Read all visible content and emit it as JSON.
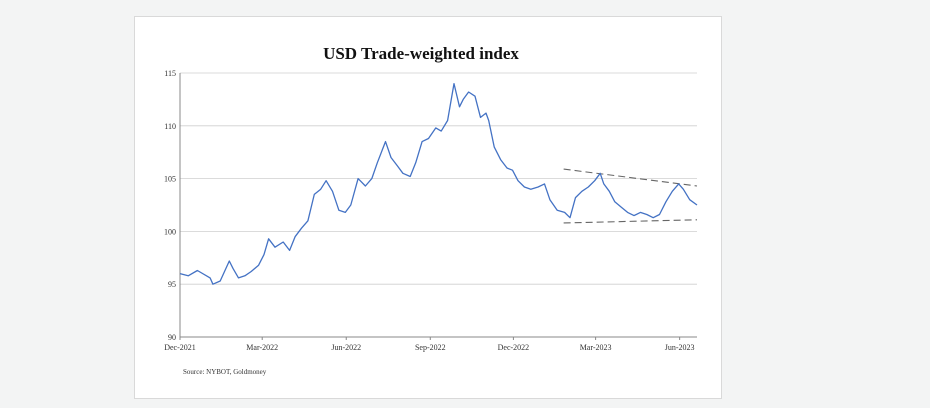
{
  "chart_data": {
    "type": "line",
    "title": "USD Trade-weighted index",
    "source": "Source: NYBOT, Goldmoney",
    "xlabel": "",
    "ylabel": "",
    "x_range": [
      "2021-12-01",
      "2023-06-20"
    ],
    "x_ticks": [
      {
        "date": "2021-12-01",
        "label": "Dec-2021"
      },
      {
        "date": "2022-03-01",
        "label": "Mar-2022"
      },
      {
        "date": "2022-06-01",
        "label": "Jun-2022"
      },
      {
        "date": "2022-09-01",
        "label": "Sep-2022"
      },
      {
        "date": "2022-12-01",
        "label": "Dec-2022"
      },
      {
        "date": "2023-03-01",
        "label": "Mar-2023"
      },
      {
        "date": "2023-06-01",
        "label": "Jun-2023"
      }
    ],
    "ylim": [
      90,
      115
    ],
    "y_ticks": [
      90,
      95,
      100,
      105,
      110,
      115
    ],
    "grid": "horizontal",
    "line_color": "#4472c4",
    "series": [
      {
        "values": [
          [
            "2021-12-01",
            96.0
          ],
          [
            "2021-12-10",
            95.8
          ],
          [
            "2021-12-20",
            96.3
          ],
          [
            "2022-01-03",
            95.6
          ],
          [
            "2022-01-06",
            95.0
          ],
          [
            "2022-01-14",
            95.3
          ],
          [
            "2022-01-24",
            97.2
          ],
          [
            "2022-01-28",
            96.5
          ],
          [
            "2022-02-03",
            95.6
          ],
          [
            "2022-02-10",
            95.8
          ],
          [
            "2022-02-17",
            96.2
          ],
          [
            "2022-02-25",
            96.8
          ],
          [
            "2022-03-03",
            97.8
          ],
          [
            "2022-03-08",
            99.3
          ],
          [
            "2022-03-15",
            98.5
          ],
          [
            "2022-03-24",
            99.0
          ],
          [
            "2022-03-31",
            98.2
          ],
          [
            "2022-04-06",
            99.5
          ],
          [
            "2022-04-13",
            100.3
          ],
          [
            "2022-04-20",
            101.0
          ],
          [
            "2022-04-27",
            103.5
          ],
          [
            "2022-05-04",
            104.0
          ],
          [
            "2022-05-10",
            104.8
          ],
          [
            "2022-05-17",
            103.8
          ],
          [
            "2022-05-24",
            102.0
          ],
          [
            "2022-05-31",
            101.8
          ],
          [
            "2022-06-06",
            102.5
          ],
          [
            "2022-06-14",
            105.0
          ],
          [
            "2022-06-22",
            104.3
          ],
          [
            "2022-06-29",
            105.0
          ],
          [
            "2022-07-05",
            106.5
          ],
          [
            "2022-07-14",
            108.5
          ],
          [
            "2022-07-20",
            107.0
          ],
          [
            "2022-07-27",
            106.2
          ],
          [
            "2022-08-02",
            105.5
          ],
          [
            "2022-08-10",
            105.2
          ],
          [
            "2022-08-16",
            106.5
          ],
          [
            "2022-08-23",
            108.5
          ],
          [
            "2022-08-30",
            108.8
          ],
          [
            "2022-09-07",
            109.8
          ],
          [
            "2022-09-13",
            109.5
          ],
          [
            "2022-09-20",
            110.5
          ],
          [
            "2022-09-27",
            114.0
          ],
          [
            "2022-10-03",
            111.8
          ],
          [
            "2022-10-07",
            112.5
          ],
          [
            "2022-10-13",
            113.2
          ],
          [
            "2022-10-20",
            112.8
          ],
          [
            "2022-10-26",
            110.8
          ],
          [
            "2022-11-01",
            111.2
          ],
          [
            "2022-11-04",
            110.5
          ],
          [
            "2022-11-10",
            108.0
          ],
          [
            "2022-11-17",
            106.8
          ],
          [
            "2022-11-24",
            106.0
          ],
          [
            "2022-11-30",
            105.8
          ],
          [
            "2022-12-06",
            104.8
          ],
          [
            "2022-12-13",
            104.2
          ],
          [
            "2022-12-20",
            104.0
          ],
          [
            "2022-12-28",
            104.2
          ],
          [
            "2023-01-04",
            104.5
          ],
          [
            "2023-01-10",
            103.0
          ],
          [
            "2023-01-18",
            102.0
          ],
          [
            "2023-01-26",
            101.8
          ],
          [
            "2023-02-01",
            101.3
          ],
          [
            "2023-02-07",
            103.2
          ],
          [
            "2023-02-14",
            103.8
          ],
          [
            "2023-02-21",
            104.2
          ],
          [
            "2023-02-28",
            104.8
          ],
          [
            "2023-03-06",
            105.5
          ],
          [
            "2023-03-10",
            104.5
          ],
          [
            "2023-03-16",
            103.8
          ],
          [
            "2023-03-22",
            102.8
          ],
          [
            "2023-03-29",
            102.3
          ],
          [
            "2023-04-05",
            101.8
          ],
          [
            "2023-04-12",
            101.5
          ],
          [
            "2023-04-19",
            101.8
          ],
          [
            "2023-04-26",
            101.6
          ],
          [
            "2023-05-03",
            101.3
          ],
          [
            "2023-05-10",
            101.6
          ],
          [
            "2023-05-17",
            102.8
          ],
          [
            "2023-05-24",
            103.8
          ],
          [
            "2023-05-31",
            104.5
          ],
          [
            "2023-06-05",
            104.0
          ],
          [
            "2023-06-12",
            103.0
          ],
          [
            "2023-06-20",
            102.5
          ]
        ]
      }
    ],
    "annotations": [
      {
        "type": "dashed-trendline",
        "from": [
          "2023-01-25",
          105.9
        ],
        "to": [
          "2023-06-20",
          104.3
        ]
      },
      {
        "type": "dashed-trendline",
        "from": [
          "2023-01-25",
          100.8
        ],
        "to": [
          "2023-06-20",
          101.1
        ]
      }
    ]
  }
}
